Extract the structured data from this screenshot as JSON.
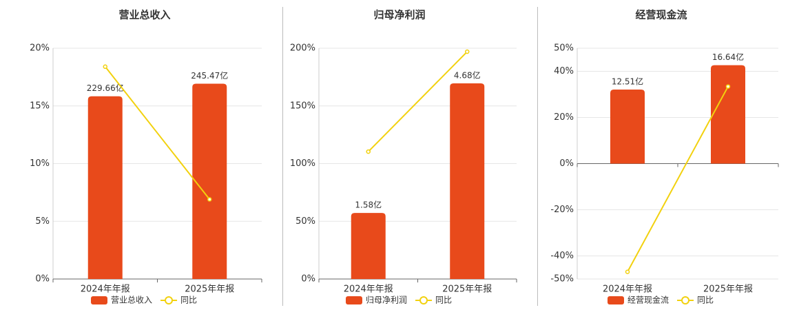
{
  "chart_data": [
    {
      "type": "combo",
      "title": "营业总收入",
      "categories": [
        "2024年年报",
        "2025年年报"
      ],
      "series": [
        {
          "name": "营业总收入",
          "type": "bar",
          "axis": "y2",
          "color": "#e84a1b",
          "values": [
            229.66,
            245.47
          ],
          "value_labels": [
            "229.66亿",
            "245.47亿"
          ]
        },
        {
          "name": "同比",
          "type": "line",
          "color": "#f2d10e",
          "values": [
            18.4,
            6.9
          ]
        }
      ],
      "ylim": [
        0,
        20
      ],
      "yticks": [
        {
          "value": 0,
          "label": "0%"
        },
        {
          "value": 5,
          "label": "5%"
        },
        {
          "value": 10,
          "label": "10%"
        },
        {
          "value": 15,
          "label": "15%"
        },
        {
          "value": 20,
          "label": "20%"
        }
      ],
      "y2lim": [
        0,
        290
      ],
      "grid": true
    },
    {
      "type": "combo",
      "title": "归母净利润",
      "categories": [
        "2024年年报",
        "2025年年报"
      ],
      "series": [
        {
          "name": "归母净利润",
          "type": "bar",
          "axis": "y2",
          "color": "#e84a1b",
          "values": [
            1.58,
            4.68
          ],
          "value_labels": [
            "1.58亿",
            "4.68亿"
          ]
        },
        {
          "name": "同比",
          "type": "line",
          "color": "#f2d10e",
          "values": [
            110.4,
            197
          ]
        }
      ],
      "ylim": [
        0,
        200
      ],
      "yticks": [
        {
          "value": 0,
          "label": "0%"
        },
        {
          "value": 50,
          "label": "50%"
        },
        {
          "value": 100,
          "label": "100%"
        },
        {
          "value": 150,
          "label": "150%"
        },
        {
          "value": 200,
          "label": "200%"
        }
      ],
      "y2lim": [
        0,
        5.52
      ],
      "grid": true
    },
    {
      "type": "combo",
      "title": "经营现金流",
      "categories": [
        "2024年年报",
        "2025年年报"
      ],
      "series": [
        {
          "name": "经营现金流",
          "type": "bar",
          "axis": "y2",
          "color": "#e84a1b",
          "values": [
            12.51,
            16.64
          ],
          "value_labels": [
            "12.51亿",
            "16.64亿"
          ]
        },
        {
          "name": "同比",
          "type": "line",
          "color": "#f2d10e",
          "values": [
            -46.9,
            33.4
          ]
        }
      ],
      "ylim": [
        -50,
        50
      ],
      "yticks": [
        {
          "value": -50,
          "label": "-50%"
        },
        {
          "value": -40,
          "label": "-40%"
        },
        {
          "value": -20,
          "label": "-20%"
        },
        {
          "value": 0,
          "label": "0%"
        },
        {
          "value": 20,
          "label": "20%"
        },
        {
          "value": 40,
          "label": "40%"
        },
        {
          "value": 50,
          "label": "50%"
        }
      ],
      "y2lim": [
        -19.5,
        19.5
      ],
      "grid": true
    }
  ]
}
